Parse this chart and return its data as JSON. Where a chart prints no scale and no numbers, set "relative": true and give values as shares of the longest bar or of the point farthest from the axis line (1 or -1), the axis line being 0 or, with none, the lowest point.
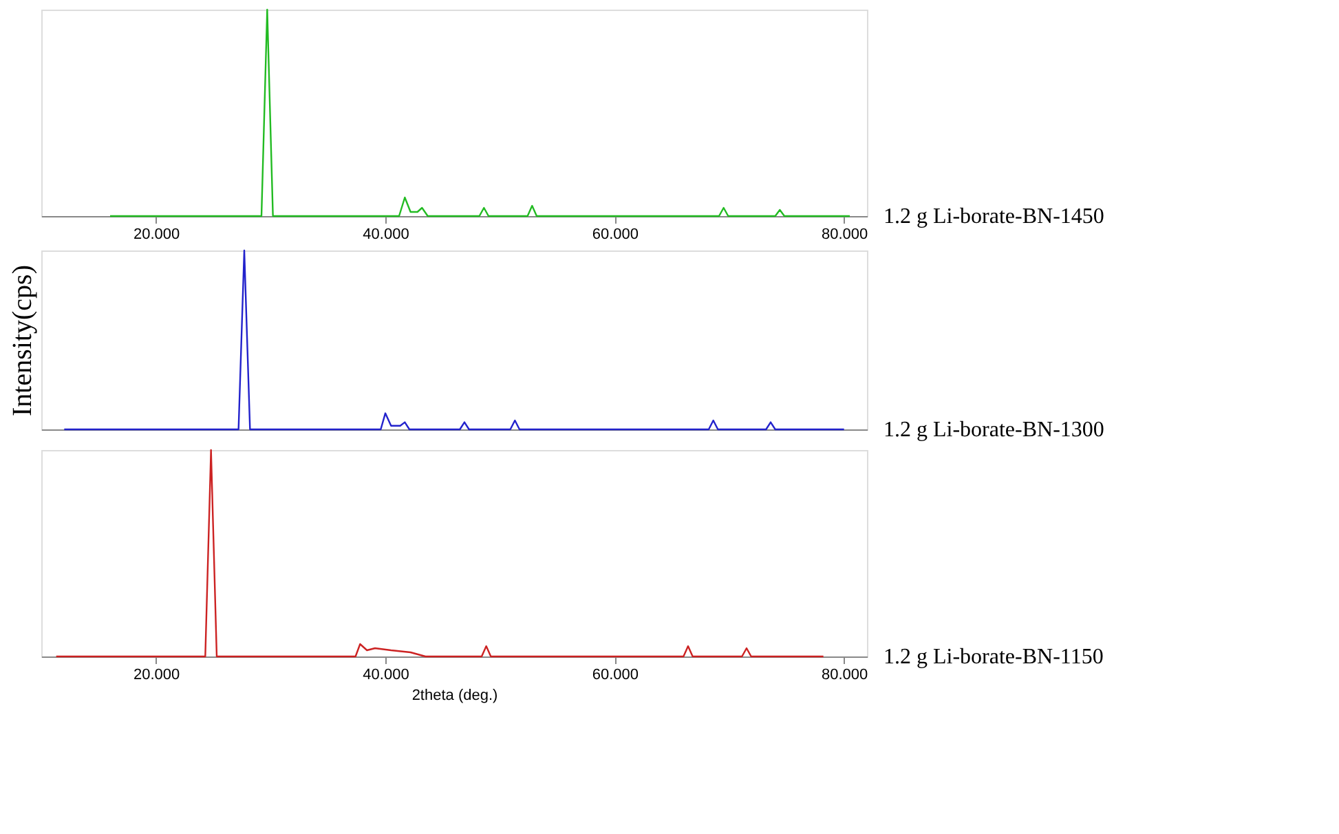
{
  "chart_data": [
    {
      "type": "line",
      "relative": true,
      "grid": false,
      "tick_labels": "x",
      "xlim": [
        10,
        82
      ],
      "xticks": [
        {
          "value": 20,
          "label": "20.000"
        },
        {
          "value": 40,
          "label": "40.000"
        },
        {
          "value": 60,
          "label": "60.000"
        },
        {
          "value": 80,
          "label": "80.000"
        }
      ],
      "x": [
        16,
        29.2,
        29.7,
        30.2,
        41.2,
        41.7,
        42.2,
        42.8,
        43.2,
        43.7,
        48.2,
        48.6,
        49.0,
        52.4,
        52.8,
        53.2,
        69.1,
        69.5,
        69.9,
        74.0,
        74.4,
        74.8,
        80.5
      ],
      "series": [
        {
          "name": "1.2 g Li-borate-BN-1450",
          "color": "#22bb22",
          "values": [
            0,
            0,
            1,
            0,
            0,
            0.09,
            0.02,
            0.02,
            0.04,
            0,
            0,
            0.04,
            0,
            0,
            0.05,
            0,
            0,
            0.04,
            0,
            0,
            0.03,
            0,
            0
          ]
        }
      ]
    },
    {
      "type": "line",
      "relative": true,
      "grid": false,
      "tick_labels": false,
      "ylabel": "Intensity(cps)",
      "xlim": [
        10,
        82
      ],
      "x": [
        12,
        27.2,
        27.7,
        28.2,
        39.6,
        40.0,
        40.5,
        41.3,
        41.7,
        42.1,
        46.5,
        46.9,
        47.3,
        50.9,
        51.3,
        51.7,
        68.2,
        68.6,
        69.0,
        73.2,
        73.6,
        74.0,
        80
      ],
      "series": [
        {
          "name": "1.2 g Li-borate-BN-1300",
          "color": "#2222cc",
          "values": [
            0,
            0,
            1,
            0,
            0,
            0.09,
            0.02,
            0.02,
            0.04,
            0,
            0,
            0.04,
            0,
            0,
            0.05,
            0,
            0,
            0.05,
            0,
            0,
            0.04,
            0,
            0
          ]
        }
      ]
    },
    {
      "type": "line",
      "relative": true,
      "grid": false,
      "tick_labels": "x",
      "xlabel": "2theta (deg.)",
      "xlim": [
        10,
        82
      ],
      "xticks": [
        {
          "value": 20,
          "label": "20.000"
        },
        {
          "value": 40,
          "label": "40.000"
        },
        {
          "value": 60,
          "label": "60.000"
        },
        {
          "value": 80,
          "label": "80.000"
        }
      ],
      "x": [
        11.3,
        24.3,
        24.8,
        25.3,
        37.4,
        37.8,
        38.4,
        39.1,
        40.5,
        42.2,
        43.5,
        48.4,
        48.8,
        49.2,
        66.0,
        66.4,
        66.8,
        71.1,
        71.5,
        71.9,
        78.2
      ],
      "series": [
        {
          "name": "1.2 g Li-borate-BN-1150",
          "color": "#cc2222",
          "values": [
            0,
            0,
            1,
            0,
            0,
            0.06,
            0.03,
            0.04,
            0.03,
            0.02,
            0,
            0,
            0.05,
            0,
            0,
            0.05,
            0,
            0,
            0.04,
            0,
            0
          ]
        }
      ]
    }
  ]
}
